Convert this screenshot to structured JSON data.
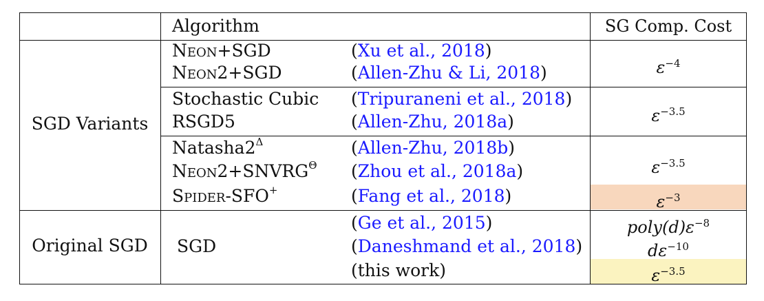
{
  "header": {
    "algorithm": "Algorithm",
    "cost": "SG Comp. Cost"
  },
  "groups": {
    "sgd_variants": "SGD Variants",
    "original_sgd": "Original SGD"
  },
  "rows": [
    {
      "alg": "Neon+SGD",
      "ref_link": "Xu et al., 2018"
    },
    {
      "alg": "Neon2+SGD",
      "ref_link": "Allen-Zhu & Li, 2018"
    },
    {
      "alg": "Stochastic Cubic",
      "ref_link": "Tripuraneni et al., 2018"
    },
    {
      "alg": "RSGD5",
      "ref_link": "Allen-Zhu, 2018a"
    },
    {
      "alg": "Natasha2",
      "alg_sup": "Δ",
      "ref_link": "Allen-Zhu, 2018b"
    },
    {
      "alg": "Neon2+SNVRG",
      "alg_sup": "Θ",
      "ref_link": "Zhou et al., 2018a"
    },
    {
      "alg": "Spider-SFO",
      "alg_sup": "+",
      "ref_link": "Fang et al., 2018"
    }
  ],
  "sgd_rows": [
    {
      "ref_link": "Ge et al., 2015"
    },
    {
      "ref_link": "Daneshmand et al., 2018"
    },
    {
      "ref_text": "(this work)"
    }
  ],
  "sgd_alg": "SGD",
  "costs": {
    "neon": {
      "base": "ε",
      "exp": "−4"
    },
    "cubic": {
      "base": "ε",
      "exp": "−3.5"
    },
    "natasha": {
      "base": "ε",
      "exp": "−3.5"
    },
    "spider": {
      "base": "ε",
      "exp": "−3"
    },
    "ge": {
      "base": "poly(d)ε",
      "exp": "−8"
    },
    "dan": {
      "base": "dε",
      "exp": "−10"
    },
    "this": {
      "base": "ε",
      "exp": "−3.5"
    }
  },
  "colors": {
    "link": "#1a1aff",
    "highlight_orange": "#f8d7bd",
    "highlight_yellow": "#fbf3c0"
  }
}
